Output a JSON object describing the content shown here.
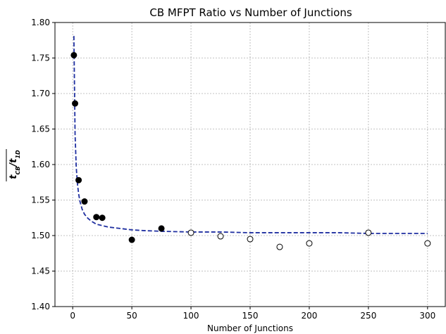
{
  "chart_data": {
    "type": "scatter",
    "title": "CB MFPT Ratio vs Number of Junctions",
    "xlabel": "Number of Junctions",
    "ylabel_main": "t",
    "ylabel_sub": "CB",
    "ylabel_sep": "/",
    "ylabel_main2": "t",
    "ylabel_sub2": "1D",
    "xlim": [
      -15,
      315
    ],
    "ylim": [
      1.4,
      1.8
    ],
    "grid": true,
    "x_ticks": [
      0,
      50,
      100,
      150,
      200,
      250,
      300
    ],
    "y_ticks": [
      1.4,
      1.45,
      1.5,
      1.55,
      1.6,
      1.65,
      1.7,
      1.75,
      1.8
    ],
    "x_tick_labels": [
      "0",
      "50",
      "100",
      "150",
      "200",
      "250",
      "300"
    ],
    "y_tick_labels": [
      "1.40",
      "1.45",
      "1.50",
      "1.55",
      "1.60",
      "1.65",
      "1.70",
      "1.75",
      "1.80"
    ],
    "series": [
      {
        "style": "filled-marker",
        "color": "#000000",
        "x": [
          1,
          2,
          5,
          10,
          20,
          25,
          50,
          75
        ],
        "y": [
          1.754,
          1.686,
          1.578,
          1.548,
          1.526,
          1.525,
          1.494,
          1.51
        ]
      },
      {
        "style": "open-marker",
        "color": "#000000",
        "x": [
          100,
          125,
          150,
          175,
          200,
          250,
          300
        ],
        "y": [
          1.504,
          1.499,
          1.495,
          1.484,
          1.489,
          1.504,
          1.489
        ]
      },
      {
        "style": "dashed-fit",
        "color": "#1f2fa0",
        "x": [
          1,
          2,
          3,
          4,
          5,
          6,
          8,
          10,
          13,
          16,
          20,
          25,
          30,
          40,
          50,
          60,
          75,
          100,
          125,
          150,
          175,
          200,
          225,
          250,
          275,
          300
        ],
        "y": [
          1.781,
          1.643,
          1.596,
          1.573,
          1.559,
          1.549,
          1.537,
          1.53,
          1.524,
          1.52,
          1.516,
          1.514,
          1.512,
          1.51,
          1.508,
          1.507,
          1.506,
          1.505,
          1.505,
          1.504,
          1.504,
          1.504,
          1.504,
          1.503,
          1.503,
          1.503
        ]
      }
    ]
  }
}
